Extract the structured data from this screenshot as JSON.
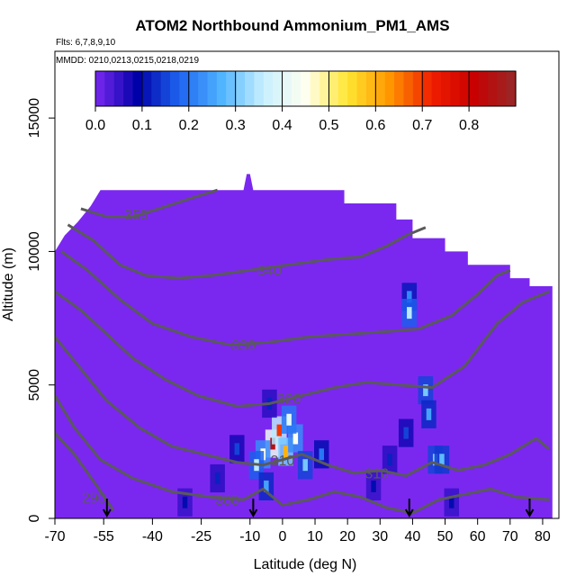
{
  "title": "ATOM2 Northbound Ammonium_PM1_AMS",
  "flights_note": "Flts: 6,7,8,9,10",
  "dates_note": "MMDD: 0210,0213,0215,0218,0219",
  "colors": {
    "background_fill": "#7a28f0",
    "contour": "#5a5a5a",
    "arrow": "#000000",
    "colorscale": [
      "#7a28f0",
      "#0000a8",
      "#1e64f0",
      "#50b4ff",
      "#c8f0ff",
      "#fffff0",
      "#ffe632",
      "#ff9600",
      "#f01e00",
      "#c80000",
      "#962828"
    ]
  },
  "chart_data": {
    "type": "heatmap",
    "title": "ATOM2 Northbound Ammonium_PM1_AMS",
    "xlabel": "Latitude (deg N)",
    "ylabel": "Altitude (m)",
    "xlim": [
      -70,
      85
    ],
    "ylim": [
      0,
      17500
    ],
    "x_ticks": [
      -70,
      -55,
      -40,
      -25,
      -10,
      0,
      10,
      20,
      30,
      40,
      50,
      60,
      70,
      80
    ],
    "y_ticks": [
      0,
      5000,
      10000,
      15000
    ],
    "colorbar": {
      "range": [
        0,
        0.9
      ],
      "ticks": [
        0.0,
        0.1,
        0.2,
        0.3,
        0.4,
        0.5,
        0.6,
        0.7,
        0.8
      ],
      "placement": "top-inside"
    },
    "data_extent_top": [
      {
        "lat": -70,
        "alt": 10000
      },
      {
        "lat": -67,
        "alt": 10600
      },
      {
        "lat": -63,
        "alt": 11100
      },
      {
        "lat": -59,
        "alt": 11700
      },
      {
        "lat": -56,
        "alt": 12300
      },
      {
        "lat": -12,
        "alt": 12300
      },
      {
        "lat": -11,
        "alt": 12900
      },
      {
        "lat": -10,
        "alt": 12900
      },
      {
        "lat": -9,
        "alt": 12300
      },
      {
        "lat": 19,
        "alt": 12300
      },
      {
        "lat": 19,
        "alt": 11800
      },
      {
        "lat": 35,
        "alt": 11800
      },
      {
        "lat": 35,
        "alt": 11200
      },
      {
        "lat": 40,
        "alt": 11200
      },
      {
        "lat": 40,
        "alt": 10500
      },
      {
        "lat": 50,
        "alt": 10500
      },
      {
        "lat": 50,
        "alt": 10000
      },
      {
        "lat": 57,
        "alt": 10000
      },
      {
        "lat": 57,
        "alt": 9500
      },
      {
        "lat": 70,
        "alt": 9500
      },
      {
        "lat": 70,
        "alt": 9000
      },
      {
        "lat": 76,
        "alt": 9000
      },
      {
        "lat": 76,
        "alt": 8700
      },
      {
        "lat": 83,
        "alt": 8700
      },
      {
        "lat": 83,
        "alt": 0
      }
    ],
    "hotspots": [
      {
        "lat": -3,
        "alt": 2800,
        "value": 0.85
      },
      {
        "lat": -1,
        "alt": 3300,
        "value": 0.7
      },
      {
        "lat": 1,
        "alt": 2500,
        "value": 0.6
      },
      {
        "lat": -6,
        "alt": 2400,
        "value": 0.45
      },
      {
        "lat": 4,
        "alt": 3000,
        "value": 0.45
      },
      {
        "lat": 2,
        "alt": 3700,
        "value": 0.4
      },
      {
        "lat": -8,
        "alt": 2000,
        "value": 0.35
      },
      {
        "lat": 7,
        "alt": 2000,
        "value": 0.3
      },
      {
        "lat": -5,
        "alt": 1200,
        "value": 0.25
      },
      {
        "lat": 12,
        "alt": 2400,
        "value": 0.2
      },
      {
        "lat": -14,
        "alt": 2600,
        "value": 0.15
      },
      {
        "lat": -4,
        "alt": 4300,
        "value": 0.12
      },
      {
        "lat": 44,
        "alt": 4800,
        "value": 0.3
      },
      {
        "lat": 45,
        "alt": 3900,
        "value": 0.25
      },
      {
        "lat": 47,
        "alt": 2200,
        "value": 0.3
      },
      {
        "lat": 49,
        "alt": 2200,
        "value": 0.28
      },
      {
        "lat": 38,
        "alt": 3200,
        "value": 0.15
      },
      {
        "lat": 33,
        "alt": 2200,
        "value": 0.12
      },
      {
        "lat": 39,
        "alt": 8300,
        "value": 0.22
      },
      {
        "lat": 39,
        "alt": 7700,
        "value": 0.35
      },
      {
        "lat": 28,
        "alt": 1200,
        "value": 0.1
      },
      {
        "lat": 52,
        "alt": 600,
        "value": 0.1
      },
      {
        "lat": -30,
        "alt": 600,
        "value": 0.1
      },
      {
        "lat": -20,
        "alt": 1500,
        "value": 0.12
      }
    ],
    "contours": [
      {
        "label": "290",
        "label_at": [
          -58,
          800
        ],
        "points": [
          [
            -70,
            3200
          ],
          [
            -64,
            2400
          ],
          [
            -57,
            1200
          ],
          [
            -52,
            300
          ]
        ]
      },
      {
        "label": "300",
        "label_at": [
          -17,
          700
        ],
        "points": [
          [
            -70,
            4600
          ],
          [
            -64,
            3400
          ],
          [
            -56,
            2200
          ],
          [
            -46,
            1500
          ],
          [
            -34,
            1000
          ],
          [
            -22,
            800
          ],
          [
            -12,
            700
          ],
          [
            -6,
            1100
          ],
          [
            0,
            500
          ],
          [
            8,
            700
          ],
          [
            16,
            1000
          ],
          [
            24,
            800
          ],
          [
            32,
            400
          ],
          [
            40,
            200
          ],
          [
            48,
            700
          ],
          [
            56,
            900
          ],
          [
            64,
            1100
          ],
          [
            72,
            800
          ],
          [
            82,
            700
          ]
        ]
      },
      {
        "label": "310",
        "label_at": [
          0,
          2200
        ],
        "points": [
          [
            -70,
            6800
          ],
          [
            -62,
            5600
          ],
          [
            -54,
            4400
          ],
          [
            -44,
            3400
          ],
          [
            -34,
            2700
          ],
          [
            -24,
            2400
          ],
          [
            -14,
            2100
          ],
          [
            -6,
            2000
          ],
          [
            0,
            2200
          ],
          [
            6,
            2400
          ],
          [
            14,
            2000
          ],
          [
            22,
            1700
          ],
          [
            30,
            1800
          ],
          [
            38,
            1600
          ],
          [
            46,
            2100
          ],
          [
            54,
            1800
          ],
          [
            62,
            2000
          ],
          [
            70,
            2400
          ],
          [
            78,
            3000
          ],
          [
            82,
            2600
          ]
        ]
      },
      {
        "label": "310",
        "label_at": [
          29,
          1700
        ],
        "points": []
      },
      {
        "label": "320",
        "label_at": [
          2,
          4500
        ],
        "points": [
          [
            -70,
            8500
          ],
          [
            -62,
            7800
          ],
          [
            -54,
            6900
          ],
          [
            -46,
            6000
          ],
          [
            -36,
            5200
          ],
          [
            -26,
            4600
          ],
          [
            -14,
            4200
          ],
          [
            -4,
            4300
          ],
          [
            6,
            4600
          ],
          [
            16,
            4900
          ],
          [
            26,
            5100
          ],
          [
            36,
            5000
          ],
          [
            46,
            4900
          ],
          [
            56,
            5700
          ],
          [
            66,
            7300
          ],
          [
            74,
            8100
          ],
          [
            82,
            8500
          ]
        ]
      },
      {
        "label": "330",
        "label_at": [
          -12,
          6500
        ],
        "points": [
          [
            -68,
            10000
          ],
          [
            -60,
            9300
          ],
          [
            -50,
            8200
          ],
          [
            -40,
            7300
          ],
          [
            -28,
            6800
          ],
          [
            -16,
            6500
          ],
          [
            -4,
            6600
          ],
          [
            8,
            6800
          ],
          [
            20,
            6900
          ],
          [
            32,
            7000
          ],
          [
            42,
            7100
          ],
          [
            52,
            7600
          ],
          [
            60,
            8400
          ],
          [
            66,
            9100
          ],
          [
            70,
            9300
          ]
        ]
      },
      {
        "label": "340",
        "label_at": [
          -4,
          9300
        ],
        "points": [
          [
            -66,
            11000
          ],
          [
            -58,
            10400
          ],
          [
            -50,
            9500
          ],
          [
            -42,
            9100
          ],
          [
            -32,
            9000
          ],
          [
            -22,
            9100
          ],
          [
            -10,
            9300
          ],
          [
            2,
            9500
          ],
          [
            14,
            9700
          ],
          [
            24,
            9800
          ],
          [
            32,
            10200
          ],
          [
            38,
            10600
          ],
          [
            44,
            10900
          ]
        ]
      },
      {
        "label": "350",
        "label_at": [
          -45,
          11400
        ],
        "points": [
          [
            -62,
            11600
          ],
          [
            -54,
            11300
          ],
          [
            -46,
            11300
          ],
          [
            -38,
            11600
          ],
          [
            -28,
            12000
          ],
          [
            -20,
            12300
          ]
        ]
      }
    ],
    "profile_markers": [
      {
        "lat": -54,
        "label": "descent"
      },
      {
        "lat": -9,
        "label": "descent"
      },
      {
        "lat": 39,
        "label": "descent"
      },
      {
        "lat": 76,
        "label": "descent"
      }
    ]
  }
}
